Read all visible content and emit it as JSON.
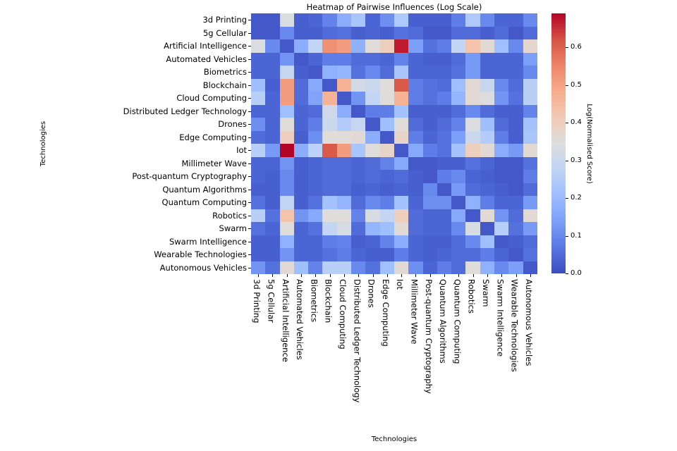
{
  "title": "Heatmap of Pairwise Influences (Log Scale)",
  "x_axis_label": "Technologies",
  "y_axis_label": "Technologies",
  "colorbar": {
    "label": "Log(Normalised Score)",
    "ticks": [
      0.0,
      0.1,
      0.2,
      0.3,
      0.4,
      0.5,
      0.6
    ],
    "vmin": 0.0,
    "vmax": 0.69,
    "colormap_name": "coolwarm",
    "colormap_stops": [
      "#3b4cc0",
      "#5977e3",
      "#7b9ff9",
      "#9ebeff",
      "#c0d4f5",
      "#dddddd",
      "#f2cab5",
      "#f7ac8e",
      "#ee8468",
      "#d65244",
      "#b40426"
    ]
  },
  "chart_data": {
    "type": "heatmap",
    "title": "Heatmap of Pairwise Influences (Log Scale)",
    "xlabel": "Technologies",
    "ylabel": "Technologies",
    "value_label": "Log(Normalised Score)",
    "vmin": 0.0,
    "vmax": 0.69,
    "legend_position": "right-colorbar",
    "grid": false,
    "categories": [
      "3d Printing",
      "5g Cellular",
      "Artificial Intelligence",
      "Automated Vehicles",
      "Biometrics",
      "Blockchain",
      "Cloud Computing",
      "Distributed Ledger Technology",
      "Drones",
      "Edge Computing",
      "Iot",
      "Millimeter Wave",
      "Post-quantum Cryptography",
      "Quantum Algorithms",
      "Quantum Computing",
      "Robotics",
      "Swarm",
      "Swarm Intelligence",
      "Wearable Technologies",
      "Autonomous Vehicles"
    ],
    "matrix": [
      [
        0.02,
        0.02,
        0.34,
        0.03,
        0.04,
        0.09,
        0.17,
        0.23,
        0.04,
        0.11,
        0.24,
        0.03,
        0.03,
        0.03,
        0.08,
        0.24,
        0.1,
        0.04,
        0.04,
        0.1
      ],
      [
        0.02,
        0.02,
        0.1,
        0.03,
        0.03,
        0.05,
        0.06,
        0.03,
        0.04,
        0.03,
        0.06,
        0.05,
        0.02,
        0.02,
        0.05,
        0.05,
        0.03,
        0.05,
        0.02,
        0.05
      ],
      [
        0.34,
        0.1,
        0.02,
        0.17,
        0.28,
        0.53,
        0.51,
        0.18,
        0.35,
        0.4,
        0.67,
        0.14,
        0.06,
        0.08,
        0.28,
        0.43,
        0.36,
        0.21,
        0.1,
        0.37
      ],
      [
        0.04,
        0.04,
        0.12,
        0.02,
        0.04,
        0.08,
        0.08,
        0.05,
        0.05,
        0.04,
        0.09,
        0.04,
        0.03,
        0.03,
        0.05,
        0.13,
        0.04,
        0.04,
        0.04,
        0.14
      ],
      [
        0.04,
        0.04,
        0.29,
        0.03,
        0.02,
        0.18,
        0.19,
        0.06,
        0.1,
        0.05,
        0.23,
        0.04,
        0.04,
        0.04,
        0.06,
        0.13,
        0.04,
        0.04,
        0.04,
        0.1
      ],
      [
        0.21,
        0.03,
        0.51,
        0.05,
        0.16,
        0.02,
        0.47,
        0.32,
        0.3,
        0.35,
        0.61,
        0.08,
        0.06,
        0.05,
        0.21,
        0.36,
        0.29,
        0.1,
        0.05,
        0.26
      ],
      [
        0.26,
        0.04,
        0.51,
        0.05,
        0.15,
        0.47,
        0.02,
        0.12,
        0.28,
        0.35,
        0.47,
        0.08,
        0.06,
        0.08,
        0.19,
        0.36,
        0.34,
        0.12,
        0.06,
        0.26
      ],
      [
        0.04,
        0.04,
        0.21,
        0.04,
        0.05,
        0.31,
        0.17,
        0.02,
        0.08,
        0.08,
        0.22,
        0.03,
        0.03,
        0.03,
        0.05,
        0.1,
        0.05,
        0.03,
        0.03,
        0.09
      ],
      [
        0.11,
        0.04,
        0.35,
        0.04,
        0.08,
        0.3,
        0.25,
        0.29,
        0.02,
        0.21,
        0.35,
        0.05,
        0.03,
        0.05,
        0.09,
        0.34,
        0.21,
        0.05,
        0.03,
        0.22
      ],
      [
        0.05,
        0.04,
        0.4,
        0.03,
        0.11,
        0.35,
        0.35,
        0.36,
        0.17,
        0.02,
        0.38,
        0.08,
        0.04,
        0.06,
        0.14,
        0.3,
        0.25,
        0.08,
        0.03,
        0.23
      ],
      [
        0.26,
        0.13,
        0.69,
        0.17,
        0.27,
        0.61,
        0.51,
        0.23,
        0.35,
        0.38,
        0.02,
        0.16,
        0.08,
        0.06,
        0.22,
        0.4,
        0.36,
        0.17,
        0.13,
        0.36
      ],
      [
        0.04,
        0.04,
        0.12,
        0.03,
        0.04,
        0.05,
        0.05,
        0.04,
        0.05,
        0.09,
        0.16,
        0.02,
        0.02,
        0.03,
        0.03,
        0.06,
        0.04,
        0.02,
        0.02,
        0.06
      ],
      [
        0.04,
        0.03,
        0.1,
        0.03,
        0.04,
        0.05,
        0.05,
        0.04,
        0.05,
        0.04,
        0.05,
        0.03,
        0.02,
        0.08,
        0.1,
        0.04,
        0.03,
        0.02,
        0.02,
        0.08
      ],
      [
        0.03,
        0.03,
        0.1,
        0.03,
        0.04,
        0.05,
        0.05,
        0.03,
        0.04,
        0.03,
        0.04,
        0.03,
        0.1,
        0.02,
        0.13,
        0.05,
        0.04,
        0.03,
        0.02,
        0.05
      ],
      [
        0.06,
        0.03,
        0.28,
        0.03,
        0.06,
        0.22,
        0.19,
        0.05,
        0.1,
        0.08,
        0.22,
        0.04,
        0.11,
        0.11,
        0.02,
        0.18,
        0.08,
        0.04,
        0.04,
        0.13
      ],
      [
        0.26,
        0.06,
        0.43,
        0.12,
        0.16,
        0.35,
        0.35,
        0.09,
        0.33,
        0.28,
        0.4,
        0.05,
        0.04,
        0.04,
        0.16,
        0.02,
        0.36,
        0.12,
        0.05,
        0.36
      ],
      [
        0.06,
        0.04,
        0.35,
        0.04,
        0.06,
        0.28,
        0.33,
        0.05,
        0.19,
        0.21,
        0.36,
        0.05,
        0.04,
        0.04,
        0.1,
        0.33,
        0.02,
        0.26,
        0.06,
        0.13
      ],
      [
        0.03,
        0.03,
        0.18,
        0.04,
        0.04,
        0.08,
        0.09,
        0.03,
        0.04,
        0.09,
        0.17,
        0.04,
        0.03,
        0.03,
        0.05,
        0.1,
        0.21,
        0.02,
        0.03,
        0.05
      ],
      [
        0.03,
        0.03,
        0.12,
        0.04,
        0.04,
        0.06,
        0.08,
        0.04,
        0.03,
        0.03,
        0.08,
        0.04,
        0.03,
        0.04,
        0.05,
        0.05,
        0.08,
        0.04,
        0.02,
        0.06
      ],
      [
        0.12,
        0.06,
        0.36,
        0.21,
        0.09,
        0.26,
        0.26,
        0.1,
        0.06,
        0.21,
        0.36,
        0.11,
        0.04,
        0.08,
        0.05,
        0.35,
        0.18,
        0.1,
        0.14,
        0.02
      ]
    ]
  }
}
